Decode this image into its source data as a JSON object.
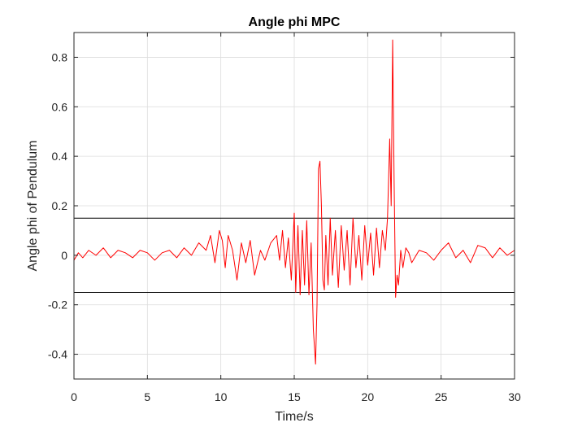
{
  "chart_data": {
    "type": "line",
    "title": "Angle phi MPC",
    "xlabel": "Time/s",
    "ylabel": "Angle phi of Pendulum",
    "xlim": [
      0,
      30
    ],
    "ylim": [
      -0.5,
      0.9
    ],
    "xticks": [
      0,
      5,
      10,
      15,
      20,
      25,
      30
    ],
    "xtick_labels": [
      "0",
      "5",
      "10",
      "15",
      "20",
      "25",
      "30"
    ],
    "yticks": [
      -0.4,
      -0.2,
      0,
      0.2,
      0.4,
      0.6,
      0.8
    ],
    "ytick_labels": [
      "-0.4",
      "-0.2",
      "0",
      "0.2",
      "0.4",
      "0.6",
      "0.8"
    ],
    "grid": true,
    "colors": {
      "series": "#ff0000",
      "reference": "#000000",
      "grid": "#dcdcdc",
      "axes": "#262626"
    },
    "reference_lines": [
      {
        "y": 0.15
      },
      {
        "y": -0.15
      }
    ],
    "series": [
      {
        "x": [
          0,
          0.3,
          0.6,
          1.0,
          1.5,
          2.0,
          2.5,
          3.0,
          3.5,
          4.0,
          4.5,
          5.0,
          5.5,
          6.0,
          6.5,
          7.0,
          7.5,
          8.0,
          8.5,
          9.0,
          9.3,
          9.6,
          9.9,
          10.1,
          10.3,
          10.5,
          10.8,
          11.1,
          11.4,
          11.7,
          12.0,
          12.3,
          12.7,
          13.0,
          13.4,
          13.8,
          14.0,
          14.2,
          14.4,
          14.6,
          14.8,
          15.0,
          15.1,
          15.25,
          15.4,
          15.55,
          15.7,
          15.85,
          16.0,
          16.15,
          16.3,
          16.45,
          16.55,
          16.65,
          16.75,
          16.85,
          16.95,
          17.05,
          17.15,
          17.3,
          17.45,
          17.6,
          17.8,
          18.0,
          18.2,
          18.4,
          18.6,
          18.8,
          19.0,
          19.2,
          19.4,
          19.6,
          19.8,
          20.0,
          20.2,
          20.4,
          20.6,
          20.8,
          21.0,
          21.2,
          21.35,
          21.5,
          21.6,
          21.7,
          21.8,
          21.9,
          22.0,
          22.1,
          22.25,
          22.4,
          22.6,
          22.8,
          23.0,
          23.5,
          24.0,
          24.5,
          25.0,
          25.5,
          26.0,
          26.5,
          27.0,
          27.5,
          28.0,
          28.5,
          29.0,
          29.5,
          30.0
        ],
        "y": [
          -0.02,
          0.01,
          -0.01,
          0.02,
          0.0,
          0.03,
          -0.01,
          0.02,
          0.01,
          -0.01,
          0.02,
          0.01,
          -0.02,
          0.01,
          0.02,
          -0.01,
          0.03,
          0.0,
          0.05,
          0.02,
          0.08,
          -0.03,
          0.1,
          0.06,
          -0.05,
          0.08,
          0.02,
          -0.1,
          0.05,
          -0.03,
          0.06,
          -0.08,
          0.02,
          -0.02,
          0.05,
          0.08,
          -0.02,
          0.1,
          -0.05,
          0.07,
          -0.1,
          0.17,
          -0.15,
          0.12,
          -0.16,
          0.1,
          -0.12,
          0.14,
          -0.16,
          0.05,
          -0.3,
          -0.44,
          -0.2,
          0.35,
          0.38,
          0.2,
          -0.1,
          -0.14,
          0.08,
          -0.12,
          0.15,
          -0.08,
          0.1,
          -0.13,
          0.12,
          -0.06,
          0.1,
          -0.12,
          0.15,
          -0.05,
          0.08,
          -0.1,
          0.12,
          -0.04,
          0.09,
          -0.08,
          0.11,
          -0.05,
          0.1,
          0.02,
          0.15,
          0.47,
          0.2,
          0.87,
          0.3,
          -0.17,
          -0.08,
          -0.12,
          0.02,
          -0.05,
          0.03,
          0.01,
          -0.03,
          0.02,
          0.01,
          -0.02,
          0.02,
          0.05,
          -0.01,
          0.02,
          -0.03,
          0.04,
          0.03,
          -0.01,
          0.03,
          0.0,
          0.02
        ]
      }
    ]
  }
}
